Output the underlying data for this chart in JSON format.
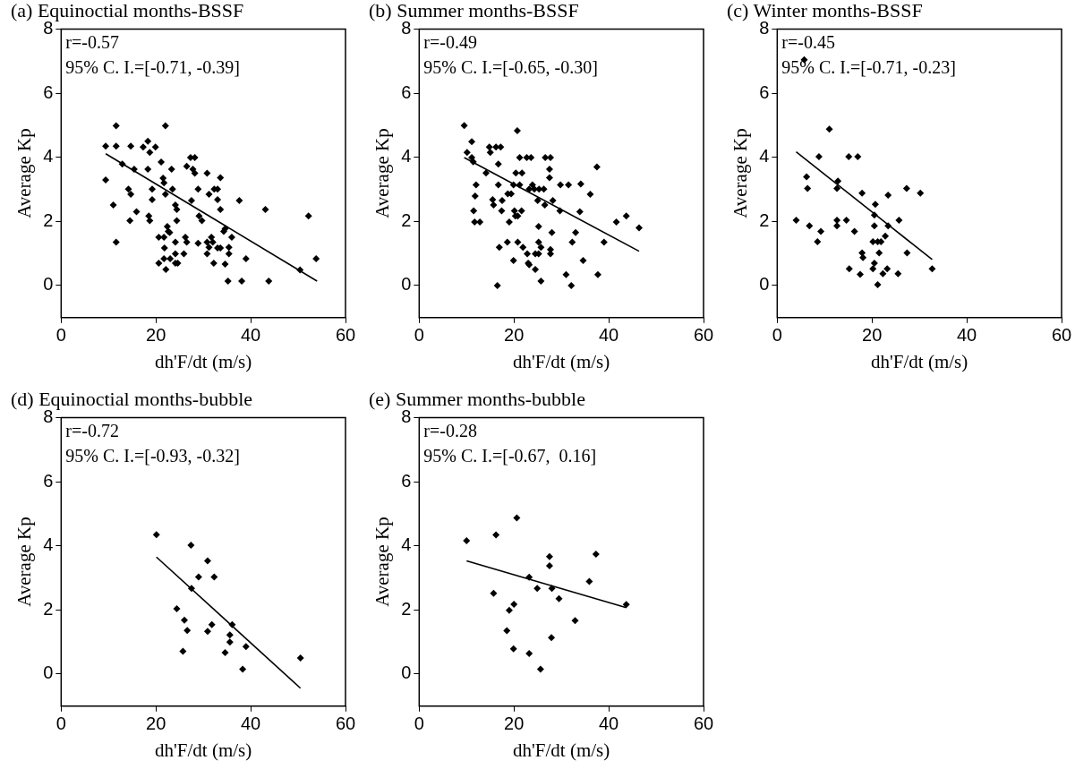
{
  "chart_data": [
    {
      "type": "scatter",
      "title": "(a) Equinoctial months-BSSF",
      "xlabel": "dh'F/dt (m/s)",
      "ylabel": "Average Kp",
      "annotations": [
        "r=-0.57",
        "95% C. I.=[-0.71, -0.39]"
      ],
      "xlim": [
        0,
        60
      ],
      "ylim": [
        -1,
        8
      ],
      "xticks": [
        0,
        20,
        40,
        60
      ],
      "yticks": [
        0,
        2,
        4,
        6,
        8
      ],
      "grid": false,
      "legend": false,
      "marker": "diamond",
      "series": [
        {
          "type": "scatter",
          "color": "#000000",
          "x": [
            9.4,
            11.6,
            11.6,
            14.7,
            17.3,
            18.3,
            18.7,
            19.9,
            22.0,
            12.9,
            15.4,
            18.3,
            21.1,
            23.3,
            26.5,
            27.3,
            28.2,
            27.8,
            28.2,
            9.4,
            21.5,
            21.7,
            30.8,
            33.6,
            14.2,
            14.7,
            19.2,
            22.0,
            23.5,
            28.9,
            31.2,
            32.3,
            33.0,
            19.2,
            27.5,
            33.0,
            37.6,
            11.0,
            24.1,
            24.4,
            33.6,
            43.1,
            15.9,
            18.5,
            18.7,
            14.5,
            29.1,
            29.7,
            24.4,
            52.2,
            22.4,
            22.6,
            22.9,
            20.6,
            21.7,
            11.6,
            24.1,
            26.2,
            26.5,
            28.9,
            30.8,
            31.2,
            31.7,
            32.0,
            33.0,
            33.6,
            34.3,
            34.6,
            36.0,
            35.4,
            35.4,
            21.8,
            24.1,
            25.9,
            30.8,
            20.6,
            21.7,
            22.1,
            23.0,
            24.1,
            24.6,
            32.2,
            34.6,
            39.0,
            53.8,
            50.4,
            35.2,
            38.1,
            43.8
          ],
          "values": [
            4.35,
            4.98,
            4.35,
            4.35,
            4.32,
            4.5,
            4.15,
            4.32,
            4.98,
            3.79,
            3.63,
            3.63,
            3.85,
            3.63,
            3.72,
            3.99,
            3.99,
            3.63,
            3.5,
            3.29,
            3.35,
            3.2,
            3.5,
            3.36,
            3.01,
            2.85,
            3.01,
            2.85,
            3.01,
            3.01,
            2.85,
            3.01,
            3.01,
            2.68,
            2.65,
            2.68,
            2.65,
            2.51,
            2.51,
            2.37,
            2.37,
            2.37,
            2.3,
            2.17,
            2.02,
            2.02,
            2.17,
            2.02,
            2.02,
            2.17,
            1.84,
            1.69,
            1.65,
            1.51,
            1.51,
            1.35,
            1.35,
            1.51,
            1.35,
            1.32,
            1.35,
            1.19,
            1.51,
            1.35,
            1.17,
            1.17,
            1.69,
            1.77,
            1.51,
            1.19,
            0.99,
            1.17,
            0.99,
            0.99,
            0.99,
            0.7,
            0.84,
            0.5,
            0.84,
            0.7,
            0.7,
            0.7,
            0.67,
            0.84,
            0.84,
            0.49,
            0.14,
            0.14,
            0.14
          ]
        },
        {
          "type": "line",
          "marker": "none",
          "color": "#000000",
          "x": [
            9.4,
            54.0
          ],
          "values": [
            4.11,
            0.14
          ]
        }
      ]
    },
    {
      "type": "scatter",
      "title": "(b) Summer months-BSSF",
      "xlabel": "dh'F/dt (m/s)",
      "ylabel": "Average Kp",
      "annotations": [
        "r=-0.49",
        "95% C. I.=[-0.65, -0.30]"
      ],
      "xlim": [
        0,
        60
      ],
      "ylim": [
        -1,
        8
      ],
      "xticks": [
        0,
        20,
        40,
        60
      ],
      "yticks": [
        0,
        2,
        4,
        6,
        8
      ],
      "grid": false,
      "legend": false,
      "marker": "diamond",
      "series": [
        {
          "type": "scatter",
          "color": "#000000",
          "x": [
            9.5,
            10.1,
            11.1,
            11.1,
            11.4,
            12.0,
            11.8,
            11.5,
            11.7,
            12.8,
            14.1,
            14.8,
            15.0,
            16.2,
            17.2,
            16.7,
            16.7,
            15.5,
            15.7,
            17.5,
            17.4,
            18.7,
            19.4,
            19.0,
            20.7,
            21.2,
            22.7,
            23.6,
            20.4,
            21.7,
            19.9,
            21.2,
            20.1,
            21.6,
            20.3,
            20.8,
            23.9,
            23.2,
            24.3,
            25.3,
            26.3,
            25.0,
            26.5,
            26.6,
            27.7,
            27.5,
            27.5,
            28.2,
            29.8,
            31.5,
            29.7,
            34.1,
            33.9,
            36.1,
            37.5,
            41.6,
            43.7,
            46.4,
            16.9,
            18.6,
            20.8,
            21.9,
            19.9,
            23.0,
            23.2,
            22.8,
            24.5,
            25.2,
            24.5,
            25.2,
            25.2,
            25.7,
            25.7,
            16.5,
            28.0,
            27.7,
            27.7,
            31.0,
            32.1,
            32.3,
            33.0,
            34.6,
            37.7,
            39.0
          ],
          "values": [
            4.99,
            4.15,
            4.49,
            3.99,
            3.86,
            3.14,
            2.79,
            2.33,
            1.98,
            1.98,
            3.51,
            4.32,
            4.15,
            4.32,
            4.32,
            3.79,
            3.14,
            2.68,
            2.51,
            2.65,
            2.33,
            2.86,
            2.86,
            1.98,
            4.83,
            3.99,
            3.99,
            3.99,
            3.51,
            3.51,
            3.14,
            3.14,
            2.33,
            2.33,
            2.17,
            2.17,
            3.14,
            3.01,
            3.01,
            3.01,
            3.01,
            2.65,
            2.51,
            3.99,
            3.99,
            3.63,
            3.36,
            2.65,
            3.14,
            3.14,
            2.33,
            3.17,
            2.3,
            2.85,
            3.7,
            1.98,
            2.17,
            1.8,
            1.19,
            1.35,
            1.35,
            1.19,
            0.78,
            0.7,
            0.65,
            0.99,
            0.99,
            0.99,
            0.5,
            1.84,
            1.35,
            1.19,
            0.14,
            0.0,
            1.65,
            1.12,
            0.99,
            0.34,
            0.0,
            1.35,
            1.65,
            0.78,
            0.34,
            1.35
          ]
        },
        {
          "type": "line",
          "marker": "none",
          "color": "#000000",
          "x": [
            9.5,
            46.4
          ],
          "values": [
            3.99,
            1.07
          ]
        }
      ]
    },
    {
      "type": "scatter",
      "title": "(c) Winter months-BSSF",
      "xlabel": "dh'F/dt (m/s)",
      "ylabel": "Average Kp",
      "annotations": [
        "r=-0.45",
        "95% C. I.=[-0.71, -0.23]"
      ],
      "xlim": [
        0,
        60
      ],
      "ylim": [
        -1,
        8
      ],
      "xticks": [
        0,
        20,
        40,
        60
      ],
      "yticks": [
        0,
        2,
        4,
        6,
        8
      ],
      "grid": false,
      "legend": false,
      "marker": "diamond",
      "series": [
        {
          "type": "scatter",
          "color": "#000000",
          "x": [
            5.7,
            11.0,
            8.8,
            15.1,
            17.0,
            6.2,
            6.4,
            12.8,
            12.6,
            17.9,
            23.4,
            27.3,
            30.2,
            20.7,
            20.5,
            4.0,
            6.8,
            9.2,
            8.5,
            12.6,
            12.6,
            14.6,
            16.3,
            20.5,
            23.4,
            25.7,
            20.2,
            21.2,
            21.9,
            22.8,
            17.9,
            18.1,
            21.5,
            27.4,
            15.2,
            17.5,
            20.2,
            20.5,
            22.3,
            23.2,
            25.5,
            21.2,
            32.7
          ],
          "values": [
            7.04,
            4.88,
            4.02,
            4.02,
            4.02,
            3.39,
            3.03,
            3.26,
            3.03,
            2.88,
            2.82,
            3.03,
            2.88,
            2.53,
            2.2,
            2.04,
            1.86,
            1.69,
            1.37,
            2.04,
            1.86,
            2.04,
            1.69,
            1.86,
            1.86,
            2.04,
            1.37,
            1.37,
            1.37,
            1.54,
            1.02,
            0.87,
            1.02,
            1.02,
            0.52,
            0.35,
            0.52,
            0.7,
            0.37,
            0.52,
            0.37,
            0.03,
            0.52
          ]
        },
        {
          "type": "line",
          "marker": "none",
          "color": "#000000",
          "x": [
            4.0,
            32.7
          ],
          "values": [
            4.17,
            0.81
          ]
        }
      ]
    },
    {
      "type": "scatter",
      "title": "(d) Equinoctial months-bubble",
      "xlabel": "dh'F/dt (m/s)",
      "ylabel": "Average Kp",
      "annotations": [
        "r=-0.72",
        "95% C. I.=[-0.93, -0.32]"
      ],
      "xlim": [
        0,
        60
      ],
      "ylim": [
        -1,
        8
      ],
      "xticks": [
        0,
        20,
        40,
        60
      ],
      "yticks": [
        0,
        2,
        4,
        6,
        8
      ],
      "grid": false,
      "legend": false,
      "marker": "diamond",
      "series": [
        {
          "type": "scatter",
          "color": "#000000",
          "x": [
            20.1,
            27.4,
            30.9,
            29.0,
            32.3,
            27.5,
            24.4,
            26.0,
            26.6,
            25.7,
            30.9,
            31.8,
            36.1,
            35.6,
            35.6,
            34.6,
            39.0,
            38.3,
            50.5
          ],
          "values": [
            4.35,
            4.02,
            3.53,
            3.03,
            3.03,
            2.67,
            2.04,
            1.68,
            1.36,
            0.71,
            1.33,
            1.54,
            1.54,
            1.22,
            1.0,
            0.67,
            0.86,
            0.15,
            0.5
          ]
        },
        {
          "type": "line",
          "marker": "none",
          "color": "#000000",
          "x": [
            20.1,
            50.5
          ],
          "values": [
            3.65,
            -0.44
          ]
        }
      ]
    },
    {
      "type": "scatter",
      "title": "(e) Summer months-bubble",
      "xlabel": "dh'F/dt (m/s)",
      "ylabel": "Average Kp",
      "annotations": [
        "r=-0.28",
        "95% C. I.=[-0.67,  0.16]"
      ],
      "xlim": [
        0,
        60
      ],
      "ylim": [
        -1,
        8
      ],
      "xticks": [
        0,
        20,
        40,
        60
      ],
      "yticks": [
        0,
        2,
        4,
        6,
        8
      ],
      "grid": false,
      "legend": false,
      "marker": "diamond",
      "series": [
        {
          "type": "scatter",
          "color": "#000000",
          "x": [
            10.0,
            16.2,
            20.6,
            15.7,
            20.0,
            19.0,
            18.5,
            19.9,
            23.2,
            25.6,
            23.2,
            24.9,
            27.5,
            27.5,
            28.0,
            27.9,
            29.5,
            32.9,
            35.9,
            37.3,
            43.7
          ],
          "values": [
            4.16,
            4.34,
            4.87,
            2.52,
            2.18,
            1.99,
            1.35,
            0.79,
            0.64,
            0.15,
            3.02,
            2.67,
            3.66,
            3.38,
            2.67,
            1.14,
            2.35,
            1.67,
            2.89,
            3.74,
            2.17
          ]
        },
        {
          "type": "line",
          "marker": "none",
          "color": "#000000",
          "x": [
            10.0,
            43.7
          ],
          "values": [
            3.53,
            2.07
          ]
        }
      ]
    }
  ]
}
